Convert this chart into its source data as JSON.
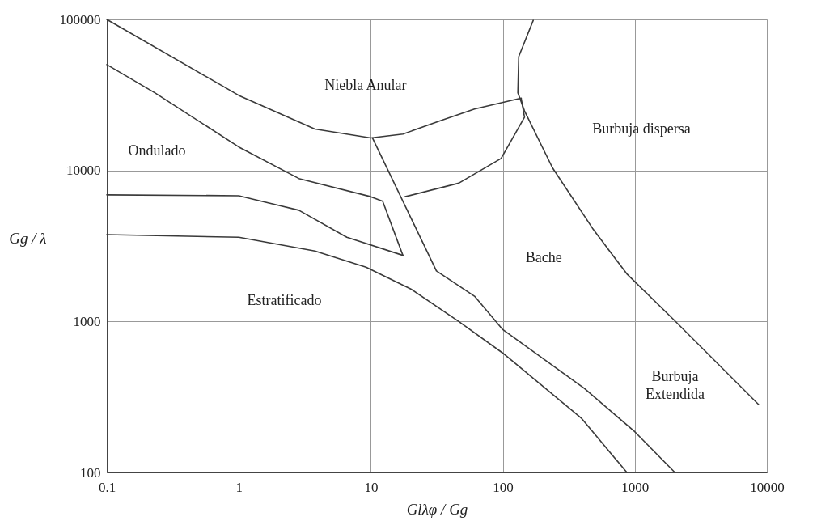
{
  "chart_data": {
    "type": "line",
    "xlabel": "Glλφ / Gg",
    "ylabel": "Gg / λ",
    "log": "xy",
    "grid": true,
    "marker": "none",
    "line_style": "solid",
    "xlim": [
      0.1,
      10000
    ],
    "xticks": [
      0.1,
      1,
      10,
      100,
      1000,
      10000
    ],
    "ylim": [
      100,
      100000
    ],
    "yticks": [
      100,
      1000,
      10000,
      100000
    ],
    "series": [
      {
        "color": "#3a3a3a",
        "x": [
          0.1,
          1,
          3.77,
          10,
          17.5,
          35,
          61,
          138
        ],
        "values": [
          100000,
          31400,
          18800,
          16400,
          17400,
          21600,
          25500,
          30100
        ]
      },
      {
        "color": "#3a3a3a",
        "x": [
          0.1,
          0.231,
          1,
          2.85,
          10,
          12.3,
          17.5
        ],
        "values": [
          50200,
          32700,
          14300,
          8840,
          6700,
          6250,
          2740
        ]
      },
      {
        "color": "#3a3a3a",
        "x": [
          0.1,
          1,
          2.85,
          6.58,
          17.5
        ],
        "values": [
          6890,
          6800,
          5450,
          3610,
          2740
        ]
      },
      {
        "color": "#3a3a3a",
        "x": [
          0.1,
          1,
          3.77,
          9.2,
          20.1,
          46.4,
          100,
          393,
          870
        ],
        "values": [
          3760,
          3610,
          2930,
          2290,
          1640,
          1000,
          617,
          229,
          100
        ]
      },
      {
        "color": "#3a3a3a",
        "x": [
          10.3,
          31.4,
          61,
          100,
          415,
          1000,
          2010
        ],
        "values": [
          16400,
          2160,
          1470,
          883,
          360,
          186,
          100
        ]
      },
      {
        "color": "#3a3a3a",
        "x": [
          18.2,
          46.4,
          97,
          146,
          138
        ],
        "values": [
          6700,
          8240,
          12000,
          22500,
          29700
        ]
      },
      {
        "color": "#3a3a3a",
        "x": [
          170,
          132,
          130,
          146,
          238,
          478,
          868,
          2010,
          8690
        ],
        "values": [
          98600,
          56700,
          32700,
          24800,
          10400,
          4140,
          2070,
          1010,
          281
        ]
      }
    ],
    "annotations": [
      "Niebla Anular",
      "Ondulado",
      "Burbuja dispersa",
      "Bache",
      "Estratificado",
      "Burbuja\nExtendida"
    ]
  }
}
